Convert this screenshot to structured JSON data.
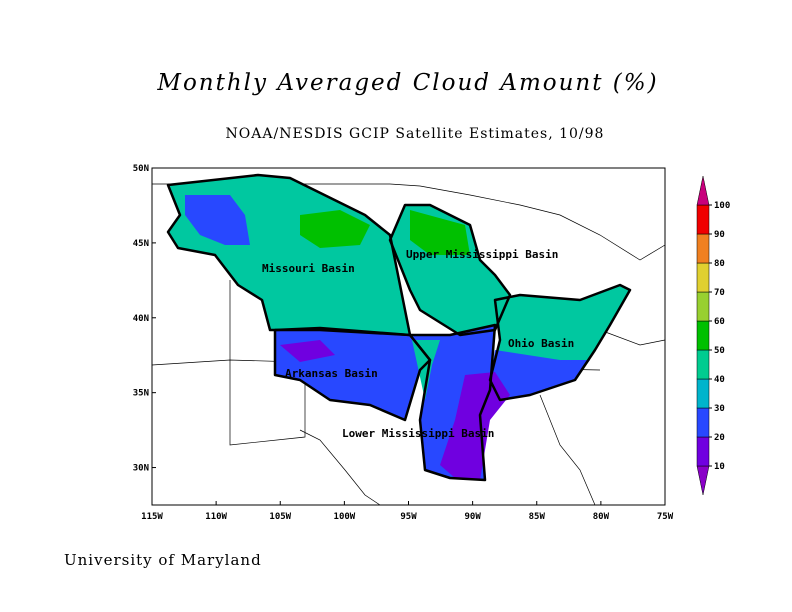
{
  "title": "Monthly Averaged Cloud Amount (%)",
  "subtitle": "NOAA/NESDIS GCIP Satellite Estimates, 10/98",
  "footer": "University of Maryland",
  "map": {
    "xlim": [
      -115,
      -75
    ],
    "ylim": [
      27.5,
      50
    ],
    "xticks": [
      {
        "value": -115,
        "label": "115W"
      },
      {
        "value": -110,
        "label": "110W"
      },
      {
        "value": -105,
        "label": "105W"
      },
      {
        "value": -100,
        "label": "100W"
      },
      {
        "value": -95,
        "label": "95W"
      },
      {
        "value": -90,
        "label": "90W"
      },
      {
        "value": -85,
        "label": "85W"
      },
      {
        "value": -80,
        "label": "80W"
      },
      {
        "value": -75,
        "label": "75W"
      }
    ],
    "yticks": [
      {
        "value": 30,
        "label": "30N"
      },
      {
        "value": 35,
        "label": "35N"
      },
      {
        "value": 40,
        "label": "40N"
      },
      {
        "value": 45,
        "label": "45N"
      },
      {
        "value": 50,
        "label": "50N"
      }
    ],
    "basins": [
      "Missouri Basin",
      "Upper Mississippi Basin",
      "Ohio Basin",
      "Arkansas Basin",
      "Lower Mississippi Basin"
    ]
  },
  "colorbar": {
    "ticks": [
      10,
      20,
      30,
      40,
      50,
      60,
      70,
      80,
      90,
      100
    ],
    "colors": [
      "#8a00c8",
      "#7000e0",
      "#2848ff",
      "#00b4cc",
      "#00cc90",
      "#00c000",
      "#98d030",
      "#e0d030",
      "#f08020",
      "#f00000",
      "#c8007c"
    ]
  }
}
